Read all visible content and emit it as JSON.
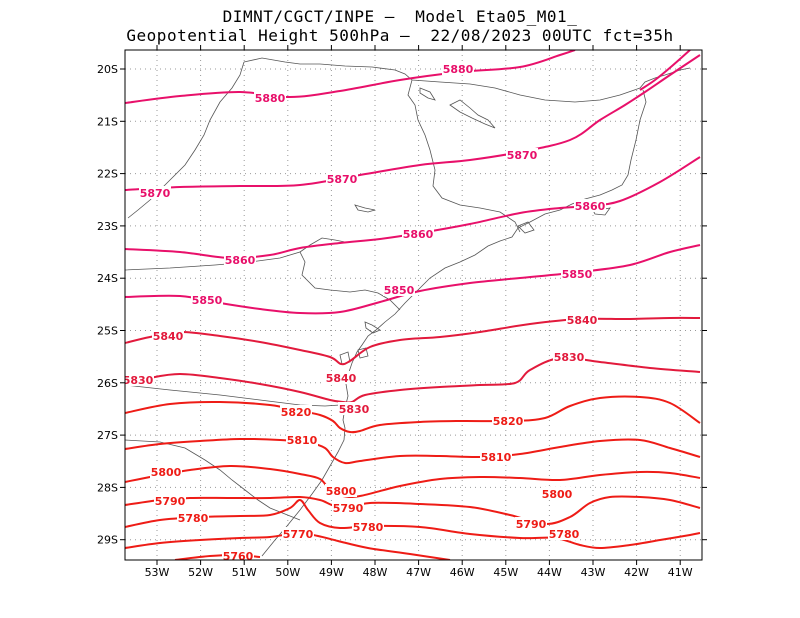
{
  "header": {
    "line1": "DIMNT/CGCT/INPE –  Model Eta05_M01_",
    "line2": "Geopotential Height 500hPa –  22/08/2023 00UTC fct=35h"
  },
  "axes": {
    "lat_ticks": [
      "20S",
      "21S",
      "22S",
      "23S",
      "24S",
      "25S",
      "26S",
      "27S",
      "28S",
      "29S"
    ],
    "lon_ticks": [
      "53W",
      "52W",
      "51W",
      "50W",
      "49W",
      "48W",
      "47W",
      "46W",
      "45W",
      "44W",
      "43W",
      "42W",
      "41W"
    ]
  },
  "colors": {
    "magenta": "#e8106a",
    "crimson": "#e21a3c",
    "red": "#ee1c16",
    "border": "#555555",
    "grid": "#999999"
  },
  "contours": [
    {
      "value": "5880",
      "color": "magenta",
      "labels": [
        [
          270,
          98
        ],
        [
          458,
          69
        ]
      ],
      "pts": [
        [
          125,
          103
        ],
        [
          180,
          96
        ],
        [
          240,
          92
        ],
        [
          290,
          97
        ],
        [
          340,
          91
        ],
        [
          400,
          80
        ],
        [
          460,
          72
        ],
        [
          520,
          67
        ],
        [
          560,
          55
        ],
        [
          575,
          50
        ]
      ]
    },
    {
      "value": "5880",
      "color": "magenta",
      "labels": [],
      "pts": [
        [
          640,
          90
        ],
        [
          655,
          80
        ],
        [
          672,
          66
        ],
        [
          690,
          50
        ]
      ]
    },
    {
      "value": "5870",
      "color": "magenta",
      "labels": [
        [
          155,
          193
        ],
        [
          342,
          179
        ],
        [
          522,
          155
        ]
      ],
      "pts": [
        [
          125,
          190
        ],
        [
          180,
          187
        ],
        [
          240,
          186
        ],
        [
          300,
          185
        ],
        [
          360,
          175
        ],
        [
          420,
          165
        ],
        [
          470,
          160
        ],
        [
          520,
          152
        ],
        [
          570,
          140
        ],
        [
          600,
          120
        ],
        [
          625,
          105
        ],
        [
          645,
          92
        ],
        [
          670,
          75
        ],
        [
          700,
          55
        ]
      ]
    },
    {
      "value": "5860",
      "color": "magenta",
      "labels": [
        [
          240,
          260
        ],
        [
          418,
          234
        ],
        [
          590,
          206
        ]
      ],
      "pts": [
        [
          125,
          249
        ],
        [
          180,
          252
        ],
        [
          230,
          258
        ],
        [
          270,
          255
        ],
        [
          300,
          248
        ],
        [
          340,
          243
        ],
        [
          380,
          239
        ],
        [
          420,
          233
        ],
        [
          470,
          224
        ],
        [
          520,
          213
        ],
        [
          560,
          208
        ],
        [
          590,
          206
        ],
        [
          620,
          201
        ],
        [
          660,
          182
        ],
        [
          700,
          157
        ]
      ]
    },
    {
      "value": "5850",
      "color": "magenta",
      "labels": [
        [
          207,
          300
        ],
        [
          399,
          290
        ],
        [
          577,
          274
        ]
      ],
      "pts": [
        [
          125,
          297
        ],
        [
          180,
          296
        ],
        [
          220,
          303
        ],
        [
          260,
          309
        ],
        [
          300,
          313
        ],
        [
          340,
          312
        ],
        [
          380,
          302
        ],
        [
          420,
          291
        ],
        [
          470,
          283
        ],
        [
          520,
          278
        ],
        [
          580,
          272
        ],
        [
          630,
          265
        ],
        [
          670,
          252
        ],
        [
          700,
          245
        ]
      ]
    },
    {
      "value": "5840",
      "color": "crimson",
      "labels": [
        [
          168,
          336
        ],
        [
          341,
          378
        ],
        [
          582,
          320
        ]
      ],
      "pts": [
        [
          125,
          343
        ],
        [
          150,
          337
        ],
        [
          180,
          332
        ],
        [
          220,
          336
        ],
        [
          260,
          342
        ],
        [
          300,
          350
        ],
        [
          330,
          357
        ],
        [
          341,
          364
        ],
        [
          350,
          361
        ],
        [
          370,
          347
        ],
        [
          400,
          340
        ],
        [
          440,
          337
        ],
        [
          480,
          332
        ],
        [
          530,
          324
        ],
        [
          580,
          319
        ],
        [
          630,
          319
        ],
        [
          670,
          318
        ],
        [
          700,
          318
        ]
      ]
    },
    {
      "value": "5830",
      "color": "crimson",
      "labels": [
        [
          138,
          380
        ],
        [
          354,
          409
        ],
        [
          569,
          357
        ]
      ],
      "pts": [
        [
          125,
          385
        ],
        [
          150,
          378
        ],
        [
          180,
          374
        ],
        [
          220,
          378
        ],
        [
          260,
          384
        ],
        [
          300,
          392
        ],
        [
          330,
          400
        ],
        [
          343,
          402
        ],
        [
          352,
          402
        ],
        [
          365,
          395
        ],
        [
          400,
          390
        ],
        [
          440,
          387
        ],
        [
          480,
          385
        ],
        [
          515,
          383
        ],
        [
          530,
          370
        ],
        [
          560,
          358
        ],
        [
          600,
          362
        ],
        [
          650,
          368
        ],
        [
          700,
          372
        ]
      ]
    },
    {
      "value": "5820",
      "color": "red",
      "labels": [
        [
          296,
          412
        ],
        [
          508,
          421
        ]
      ],
      "pts": [
        [
          125,
          413
        ],
        [
          170,
          404
        ],
        [
          220,
          402
        ],
        [
          270,
          405
        ],
        [
          300,
          411
        ],
        [
          320,
          415
        ],
        [
          333,
          421
        ],
        [
          340,
          428
        ],
        [
          350,
          432
        ],
        [
          360,
          431
        ],
        [
          380,
          425
        ],
        [
          420,
          422
        ],
        [
          460,
          421
        ],
        [
          510,
          421
        ],
        [
          545,
          418
        ],
        [
          570,
          406
        ],
        [
          600,
          398
        ],
        [
          640,
          397
        ],
        [
          670,
          403
        ],
        [
          700,
          423
        ]
      ]
    },
    {
      "value": "5810",
      "color": "red",
      "labels": [
        [
          302,
          440
        ],
        [
          496,
          457
        ]
      ],
      "pts": [
        [
          125,
          449
        ],
        [
          160,
          444
        ],
        [
          200,
          441
        ],
        [
          240,
          439
        ],
        [
          280,
          440
        ],
        [
          310,
          443
        ],
        [
          325,
          448
        ],
        [
          333,
          457
        ],
        [
          345,
          463
        ],
        [
          360,
          461
        ],
        [
          400,
          456
        ],
        [
          440,
          456
        ],
        [
          480,
          457
        ],
        [
          520,
          454
        ],
        [
          560,
          447
        ],
        [
          600,
          441
        ],
        [
          640,
          440
        ],
        [
          670,
          448
        ],
        [
          700,
          457
        ]
      ]
    },
    {
      "value": "5800",
      "color": "red",
      "labels": [
        [
          166,
          472
        ],
        [
          341,
          491
        ],
        [
          557,
          494
        ]
      ],
      "pts": [
        [
          125,
          482
        ],
        [
          150,
          477
        ],
        [
          190,
          470
        ],
        [
          230,
          466
        ],
        [
          270,
          469
        ],
        [
          300,
          474
        ],
        [
          320,
          479
        ],
        [
          330,
          490
        ],
        [
          343,
          496
        ],
        [
          360,
          496
        ],
        [
          400,
          486
        ],
        [
          440,
          479
        ],
        [
          480,
          477
        ],
        [
          520,
          478
        ],
        [
          560,
          480
        ],
        [
          600,
          475
        ],
        [
          640,
          472
        ],
        [
          670,
          473
        ],
        [
          700,
          478
        ]
      ]
    },
    {
      "value": "5790",
      "color": "red",
      "labels": [
        [
          170,
          501
        ],
        [
          348,
          508
        ],
        [
          531,
          524
        ]
      ],
      "pts": [
        [
          125,
          505
        ],
        [
          160,
          500
        ],
        [
          190,
          498
        ],
        [
          230,
          498
        ],
        [
          270,
          498
        ],
        [
          300,
          497
        ],
        [
          320,
          500
        ],
        [
          332,
          505
        ],
        [
          345,
          508
        ],
        [
          370,
          503
        ],
        [
          420,
          504
        ],
        [
          470,
          507
        ],
        [
          510,
          515
        ],
        [
          545,
          524
        ],
        [
          570,
          517
        ],
        [
          590,
          503
        ],
        [
          610,
          497
        ],
        [
          640,
          497
        ],
        [
          670,
          500
        ],
        [
          700,
          508
        ]
      ]
    },
    {
      "value": "5780",
      "color": "red",
      "labels": [
        [
          193,
          518
        ],
        [
          368,
          527
        ],
        [
          564,
          534
        ]
      ],
      "pts": [
        [
          125,
          527
        ],
        [
          160,
          520
        ],
        [
          200,
          517
        ],
        [
          240,
          516
        ],
        [
          270,
          515
        ],
        [
          290,
          508
        ],
        [
          300,
          500
        ],
        [
          308,
          510
        ],
        [
          320,
          523
        ],
        [
          340,
          528
        ],
        [
          370,
          526
        ],
        [
          420,
          527
        ],
        [
          470,
          534
        ],
        [
          520,
          538
        ],
        [
          555,
          538
        ],
        [
          580,
          545
        ],
        [
          600,
          548
        ],
        [
          630,
          545
        ],
        [
          660,
          540
        ],
        [
          690,
          535
        ],
        [
          700,
          533
        ]
      ]
    },
    {
      "value": "5770",
      "color": "red",
      "labels": [
        [
          298,
          534
        ]
      ],
      "pts": [
        [
          125,
          548
        ],
        [
          160,
          543
        ],
        [
          200,
          540
        ],
        [
          240,
          538
        ],
        [
          270,
          537
        ],
        [
          298,
          533
        ],
        [
          318,
          536
        ],
        [
          338,
          541
        ],
        [
          368,
          548
        ],
        [
          410,
          554
        ],
        [
          450,
          560
        ]
      ]
    },
    {
      "value": "5760",
      "color": "red",
      "labels": [
        [
          238,
          556
        ]
      ],
      "pts": [
        [
          175,
          560
        ],
        [
          210,
          556
        ],
        [
          238,
          555
        ],
        [
          260,
          557
        ]
      ]
    }
  ]
}
